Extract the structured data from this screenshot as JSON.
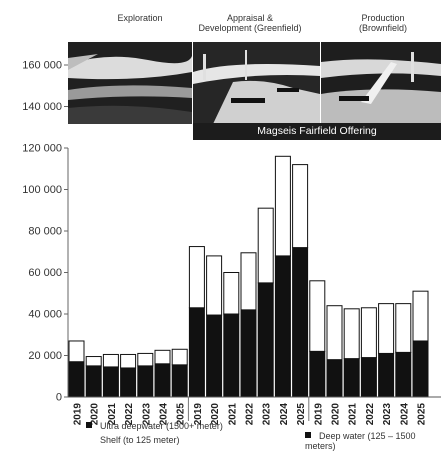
{
  "stages": {
    "exploration": "Exploration",
    "appraisal": "Appraisal &\nDevelopment (Greenfield)",
    "production": "Production\n(Brownfield)"
  },
  "banner": "Magseis Fairfield Offering",
  "chart_data": {
    "type": "bar",
    "stacked": true,
    "categories": [
      "2019",
      "2020",
      "2021",
      "2022",
      "2023",
      "2024",
      "2025",
      "2019",
      "2020",
      "2021",
      "2022",
      "2023",
      "2024",
      "2025",
      "2019",
      "2020",
      "2021",
      "2022",
      "2023",
      "2024",
      "2025"
    ],
    "groups": [
      {
        "name": "",
        "range": [
          0,
          6
        ]
      },
      {
        "name": "",
        "range": [
          7,
          13
        ]
      },
      {
        "name": "",
        "range": [
          14,
          20
        ]
      }
    ],
    "series": [
      {
        "name": "Ultra deepwater (1500+ meter)",
        "color": "#111111",
        "values": [
          17000,
          15000,
          14500,
          14000,
          15000,
          16000,
          15500,
          43000,
          39500,
          40000,
          42000,
          55000,
          68000,
          72000,
          22000,
          18000,
          18500,
          19000,
          21000,
          21500,
          27000
        ]
      },
      {
        "name": "Deep water (125 – 1500 meters)",
        "color": "#111111",
        "values": [
          0,
          0,
          0,
          0,
          0,
          0,
          0,
          0,
          0,
          0,
          0,
          0,
          0,
          0,
          0,
          0,
          0,
          0,
          0,
          0,
          0
        ]
      },
      {
        "name": "Shelf (to 125 meter)",
        "color": "#ffffff",
        "values": [
          10000,
          4500,
          6000,
          6500,
          6000,
          6500,
          7500,
          29500,
          28500,
          20000,
          27500,
          36000,
          48000,
          40000,
          34000,
          26000,
          24000,
          24000,
          24000,
          23500,
          24000
        ]
      }
    ],
    "yticks": [
      "0",
      "20 000",
      "40 000",
      "60 000",
      "80 000",
      "100 000",
      "120 000",
      "140 000",
      "160 000"
    ],
    "ylim": [
      0,
      160000
    ],
    "grid": false,
    "legend": "bottom"
  },
  "legend": {
    "ultra": "Ultra deepwater (1500+ meter)",
    "deep": "Deep water (125 – 1500\nmeters)",
    "shelf": "Shelf (to 125 meter)"
  }
}
